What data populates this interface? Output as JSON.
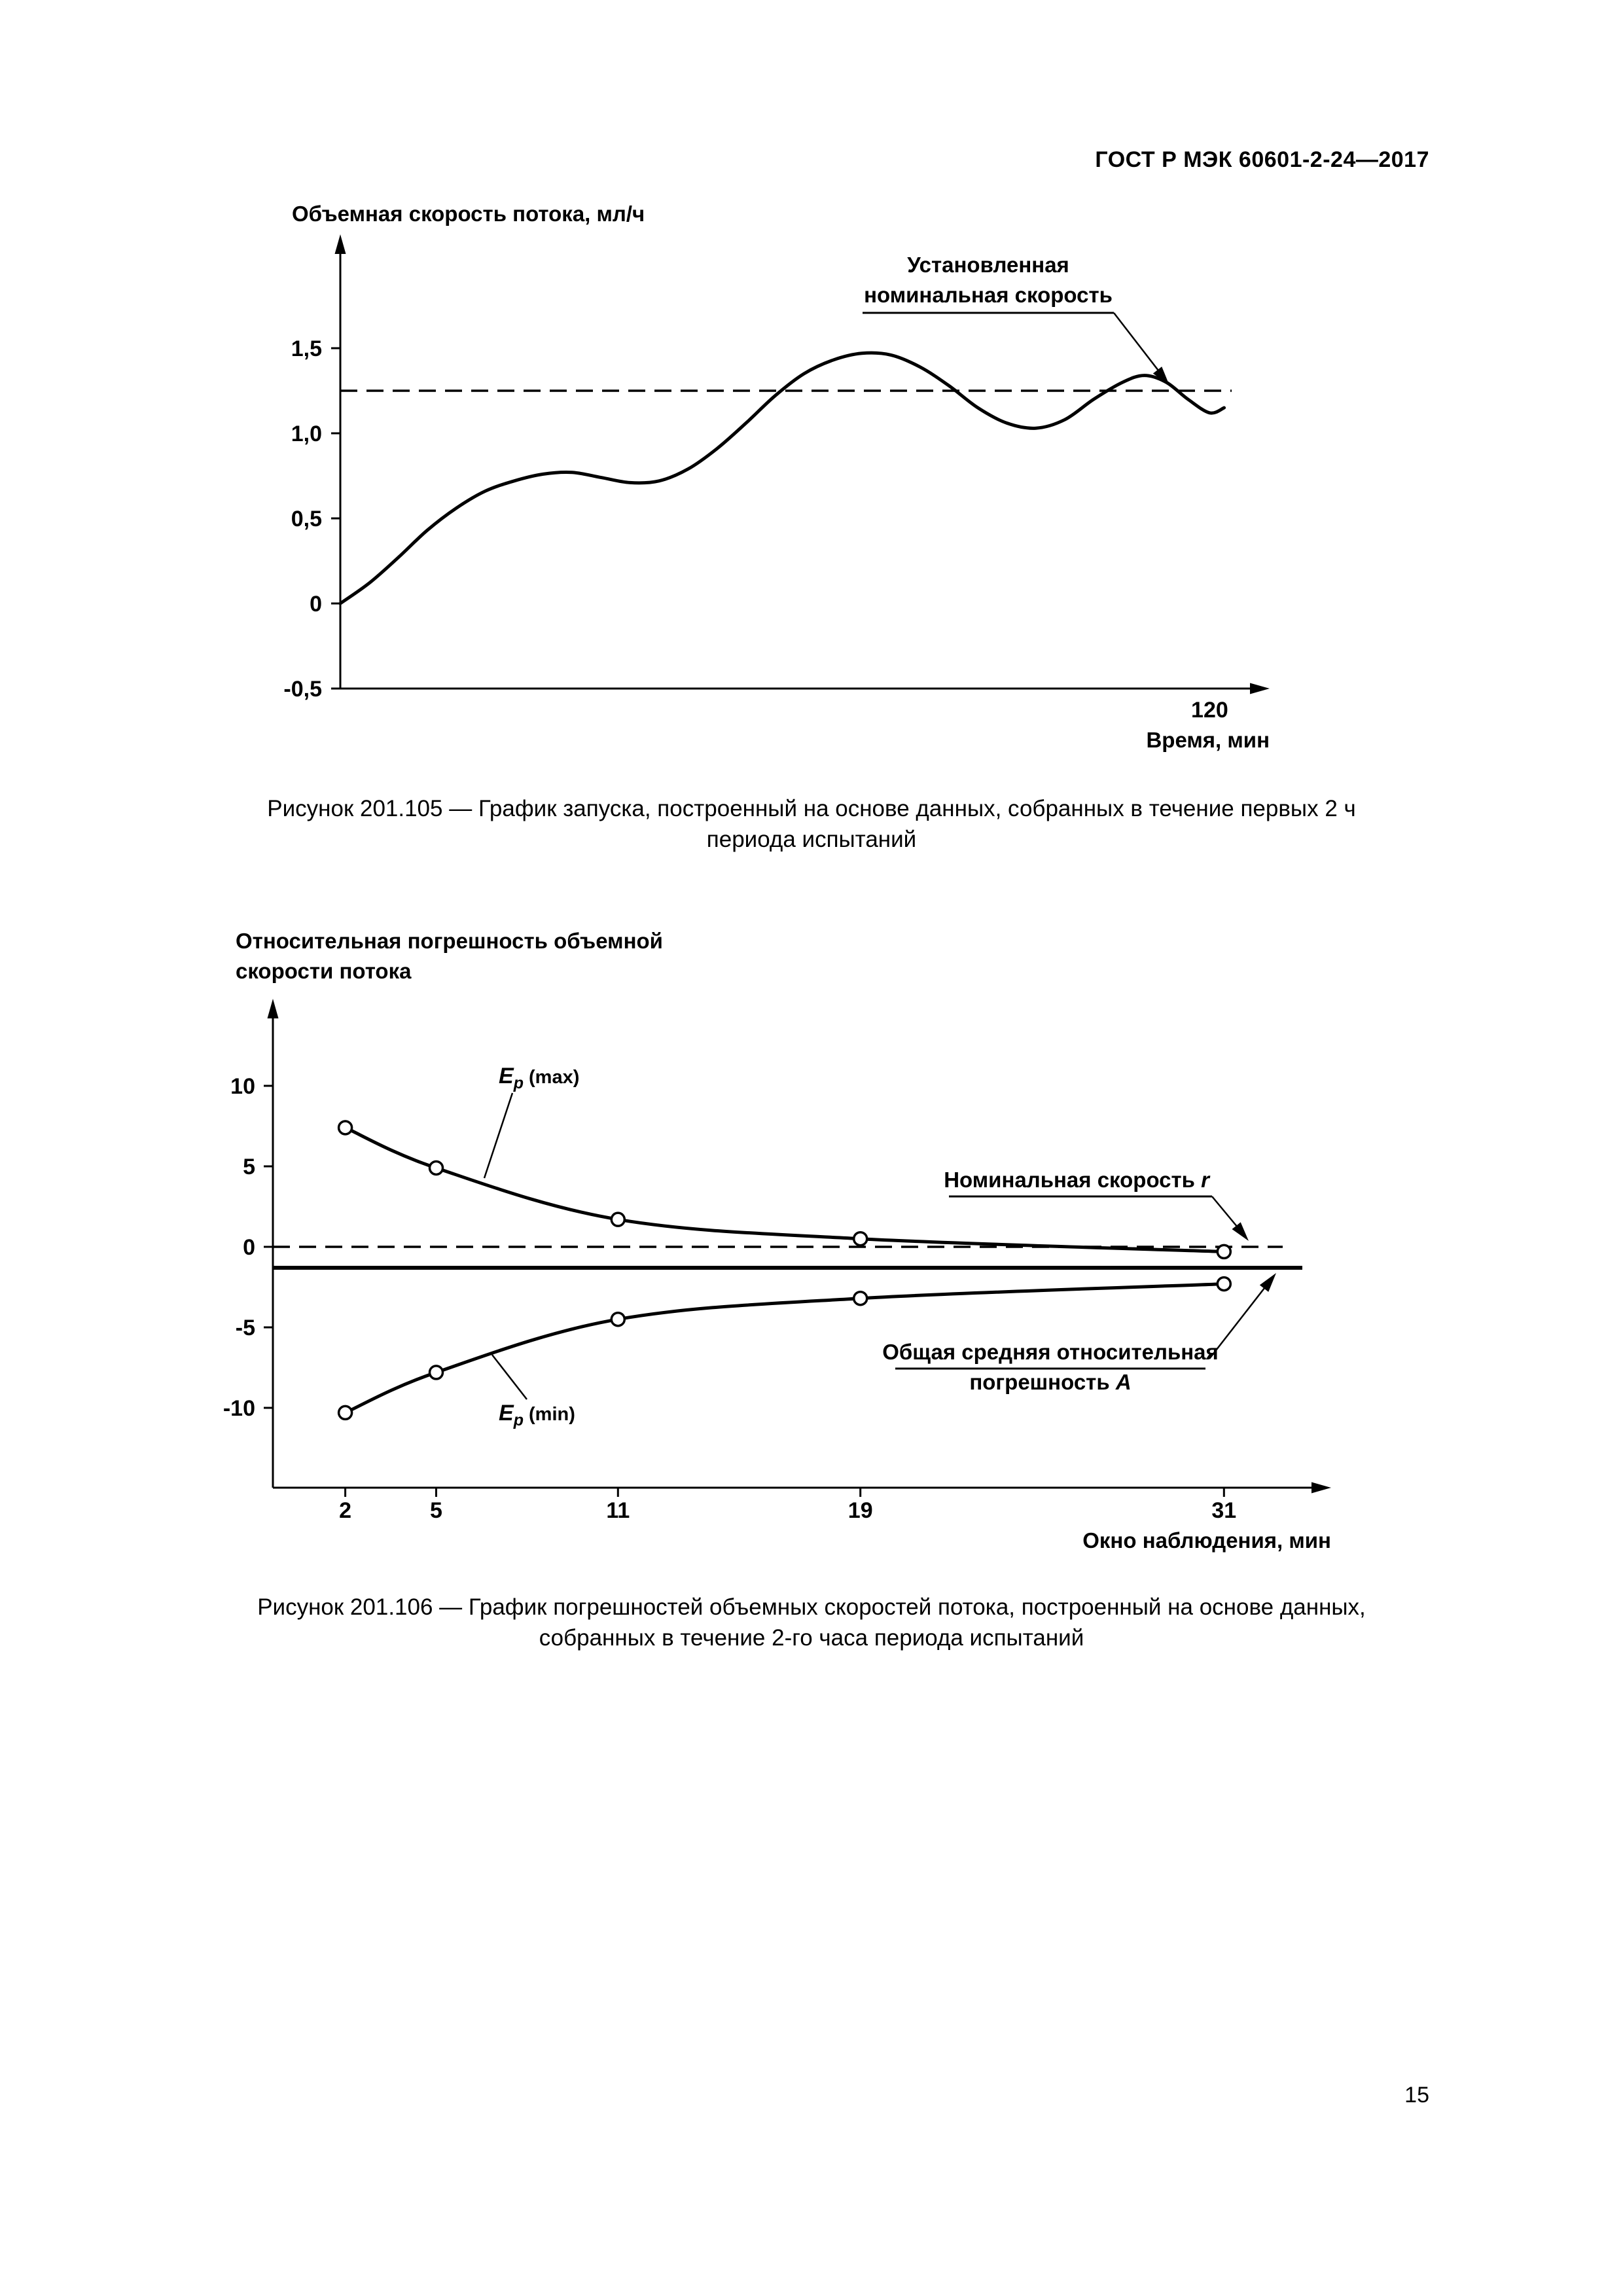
{
  "page": {
    "header": "ГОСТ Р МЭК 60601-2-24—2017",
    "page_number": "15"
  },
  "figures": [
    {
      "caption_lines": [
        "Рисунок 201.105 — График запуска, построенный на основе данных, собранных в течение первых 2 ч",
        "периода испытаний"
      ]
    },
    {
      "caption_lines": [
        "Рисунок 201.106 — График погрешностей объемных скоростей потока, построенный на основе данных,",
        "собранных в течение 2-го часа периода испытаний"
      ]
    }
  ],
  "chart_data": [
    {
      "type": "line",
      "title": "",
      "ylabel": "Объемная скорость потока, мл/ч",
      "xlabel": "Время, мин",
      "yticks": [
        {
          "value": 1.5,
          "label": "1,5"
        },
        {
          "value": 1.0,
          "label": "1,0"
        },
        {
          "value": 0.5,
          "label": "0,5"
        },
        {
          "value": 0,
          "label": "0"
        },
        {
          "value": -0.5,
          "label": "-0,5"
        }
      ],
      "xticks": [
        {
          "value": 120,
          "label": "120"
        }
      ],
      "xlim": [
        0,
        128
      ],
      "ylim": [
        -0.5,
        1.8
      ],
      "grid": false,
      "reference_line": {
        "value": 1.25,
        "style": "dashed",
        "label_lines": [
          "Установленная",
          "номинальная скорость"
        ]
      },
      "series": [
        {
          "name": "Объемная скорость потока",
          "x": [
            0,
            4,
            8,
            12,
            16,
            20,
            24,
            28,
            32,
            36,
            40,
            44,
            48,
            52,
            56,
            60,
            64,
            68,
            72,
            76,
            80,
            84,
            88,
            92,
            96,
            100,
            104,
            108,
            111,
            114,
            117,
            120,
            122
          ],
          "y": [
            0,
            0.12,
            0.27,
            0.43,
            0.56,
            0.66,
            0.72,
            0.76,
            0.77,
            0.74,
            0.71,
            0.72,
            0.79,
            0.91,
            1.06,
            1.22,
            1.35,
            1.43,
            1.47,
            1.46,
            1.39,
            1.28,
            1.15,
            1.06,
            1.03,
            1.08,
            1.2,
            1.3,
            1.34,
            1.3,
            1.2,
            1.12,
            1.15
          ]
        }
      ]
    },
    {
      "type": "line",
      "title": "",
      "ylabel_lines": [
        "Относительная погрешность объемной",
        "скорости потока"
      ],
      "xlabel": "Окно наблюдения, мин",
      "yticks": [
        {
          "value": 10,
          "label": "10"
        },
        {
          "value": 5,
          "label": "5"
        },
        {
          "value": 0,
          "label": "0"
        },
        {
          "value": -5,
          "label": "-5"
        },
        {
          "value": -10,
          "label": "-10"
        }
      ],
      "xticks": [
        {
          "value": 2,
          "label": "2"
        },
        {
          "value": 5,
          "label": "5"
        },
        {
          "value": 11,
          "label": "11"
        },
        {
          "value": 19,
          "label": "19"
        },
        {
          "value": 31,
          "label": "31"
        }
      ],
      "xlim": [
        0,
        34.5
      ],
      "ylim": [
        -15,
        13
      ],
      "grid": false,
      "nominal_line": {
        "value": 0,
        "style": "dashed",
        "label": {
          "text": "Номинальная скорость ",
          "var": "r"
        }
      },
      "overall_error_line": {
        "value": -1.3,
        "style": "solid",
        "label": {
          "line1": "Общая средняя относительная",
          "line2": "погрешность ",
          "var": "A"
        }
      },
      "series": [
        {
          "name": {
            "base": "E",
            "sub": "p",
            "suffix": "(max)"
          },
          "x": [
            2,
            5,
            11,
            19,
            31
          ],
          "y": [
            7.4,
            4.9,
            1.7,
            0.5,
            -0.3
          ]
        },
        {
          "name": {
            "base": "E",
            "sub": "p",
            "suffix": "(min)"
          },
          "x": [
            2,
            5,
            11,
            19,
            31
          ],
          "y": [
            -10.3,
            -7.8,
            -4.5,
            -3.2,
            -2.3
          ]
        }
      ]
    }
  ]
}
